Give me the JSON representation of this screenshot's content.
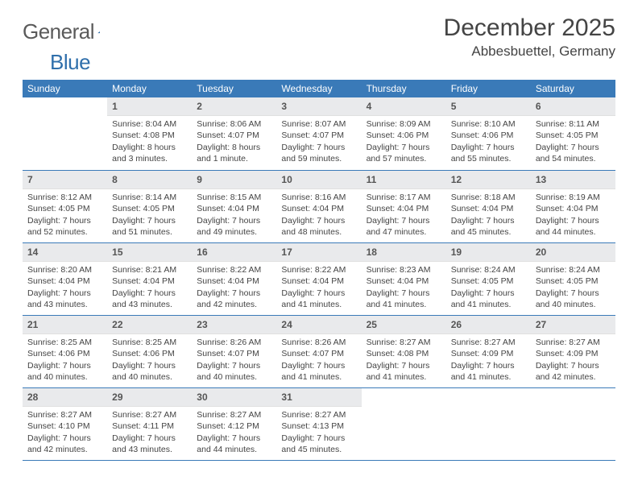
{
  "logo": {
    "word1": "General",
    "word2": "Blue"
  },
  "header": {
    "month_title": "December 2025",
    "location": "Abbesbuettel, Germany"
  },
  "colors": {
    "header_bg": "#3a7ab8",
    "header_fg": "#ffffff",
    "daynum_bg": "#e9eaec",
    "rule": "#3a7ab8",
    "text": "#444444",
    "logo_gray": "#5a5a5a",
    "logo_blue": "#2f6fab"
  },
  "day_headers": [
    "Sunday",
    "Monday",
    "Tuesday",
    "Wednesday",
    "Thursday",
    "Friday",
    "Saturday"
  ],
  "weeks": [
    [
      {
        "num": "",
        "sunrise": "",
        "sunset": "",
        "daylight": ""
      },
      {
        "num": "1",
        "sunrise": "Sunrise: 8:04 AM",
        "sunset": "Sunset: 4:08 PM",
        "daylight": "Daylight: 8 hours and 3 minutes."
      },
      {
        "num": "2",
        "sunrise": "Sunrise: 8:06 AM",
        "sunset": "Sunset: 4:07 PM",
        "daylight": "Daylight: 8 hours and 1 minute."
      },
      {
        "num": "3",
        "sunrise": "Sunrise: 8:07 AM",
        "sunset": "Sunset: 4:07 PM",
        "daylight": "Daylight: 7 hours and 59 minutes."
      },
      {
        "num": "4",
        "sunrise": "Sunrise: 8:09 AM",
        "sunset": "Sunset: 4:06 PM",
        "daylight": "Daylight: 7 hours and 57 minutes."
      },
      {
        "num": "5",
        "sunrise": "Sunrise: 8:10 AM",
        "sunset": "Sunset: 4:06 PM",
        "daylight": "Daylight: 7 hours and 55 minutes."
      },
      {
        "num": "6",
        "sunrise": "Sunrise: 8:11 AM",
        "sunset": "Sunset: 4:05 PM",
        "daylight": "Daylight: 7 hours and 54 minutes."
      }
    ],
    [
      {
        "num": "7",
        "sunrise": "Sunrise: 8:12 AM",
        "sunset": "Sunset: 4:05 PM",
        "daylight": "Daylight: 7 hours and 52 minutes."
      },
      {
        "num": "8",
        "sunrise": "Sunrise: 8:14 AM",
        "sunset": "Sunset: 4:05 PM",
        "daylight": "Daylight: 7 hours and 51 minutes."
      },
      {
        "num": "9",
        "sunrise": "Sunrise: 8:15 AM",
        "sunset": "Sunset: 4:04 PM",
        "daylight": "Daylight: 7 hours and 49 minutes."
      },
      {
        "num": "10",
        "sunrise": "Sunrise: 8:16 AM",
        "sunset": "Sunset: 4:04 PM",
        "daylight": "Daylight: 7 hours and 48 minutes."
      },
      {
        "num": "11",
        "sunrise": "Sunrise: 8:17 AM",
        "sunset": "Sunset: 4:04 PM",
        "daylight": "Daylight: 7 hours and 47 minutes."
      },
      {
        "num": "12",
        "sunrise": "Sunrise: 8:18 AM",
        "sunset": "Sunset: 4:04 PM",
        "daylight": "Daylight: 7 hours and 45 minutes."
      },
      {
        "num": "13",
        "sunrise": "Sunrise: 8:19 AM",
        "sunset": "Sunset: 4:04 PM",
        "daylight": "Daylight: 7 hours and 44 minutes."
      }
    ],
    [
      {
        "num": "14",
        "sunrise": "Sunrise: 8:20 AM",
        "sunset": "Sunset: 4:04 PM",
        "daylight": "Daylight: 7 hours and 43 minutes."
      },
      {
        "num": "15",
        "sunrise": "Sunrise: 8:21 AM",
        "sunset": "Sunset: 4:04 PM",
        "daylight": "Daylight: 7 hours and 43 minutes."
      },
      {
        "num": "16",
        "sunrise": "Sunrise: 8:22 AM",
        "sunset": "Sunset: 4:04 PM",
        "daylight": "Daylight: 7 hours and 42 minutes."
      },
      {
        "num": "17",
        "sunrise": "Sunrise: 8:22 AM",
        "sunset": "Sunset: 4:04 PM",
        "daylight": "Daylight: 7 hours and 41 minutes."
      },
      {
        "num": "18",
        "sunrise": "Sunrise: 8:23 AM",
        "sunset": "Sunset: 4:04 PM",
        "daylight": "Daylight: 7 hours and 41 minutes."
      },
      {
        "num": "19",
        "sunrise": "Sunrise: 8:24 AM",
        "sunset": "Sunset: 4:05 PM",
        "daylight": "Daylight: 7 hours and 41 minutes."
      },
      {
        "num": "20",
        "sunrise": "Sunrise: 8:24 AM",
        "sunset": "Sunset: 4:05 PM",
        "daylight": "Daylight: 7 hours and 40 minutes."
      }
    ],
    [
      {
        "num": "21",
        "sunrise": "Sunrise: 8:25 AM",
        "sunset": "Sunset: 4:06 PM",
        "daylight": "Daylight: 7 hours and 40 minutes."
      },
      {
        "num": "22",
        "sunrise": "Sunrise: 8:25 AM",
        "sunset": "Sunset: 4:06 PM",
        "daylight": "Daylight: 7 hours and 40 minutes."
      },
      {
        "num": "23",
        "sunrise": "Sunrise: 8:26 AM",
        "sunset": "Sunset: 4:07 PM",
        "daylight": "Daylight: 7 hours and 40 minutes."
      },
      {
        "num": "24",
        "sunrise": "Sunrise: 8:26 AM",
        "sunset": "Sunset: 4:07 PM",
        "daylight": "Daylight: 7 hours and 41 minutes."
      },
      {
        "num": "25",
        "sunrise": "Sunrise: 8:27 AM",
        "sunset": "Sunset: 4:08 PM",
        "daylight": "Daylight: 7 hours and 41 minutes."
      },
      {
        "num": "26",
        "sunrise": "Sunrise: 8:27 AM",
        "sunset": "Sunset: 4:09 PM",
        "daylight": "Daylight: 7 hours and 41 minutes."
      },
      {
        "num": "27",
        "sunrise": "Sunrise: 8:27 AM",
        "sunset": "Sunset: 4:09 PM",
        "daylight": "Daylight: 7 hours and 42 minutes."
      }
    ],
    [
      {
        "num": "28",
        "sunrise": "Sunrise: 8:27 AM",
        "sunset": "Sunset: 4:10 PM",
        "daylight": "Daylight: 7 hours and 42 minutes."
      },
      {
        "num": "29",
        "sunrise": "Sunrise: 8:27 AM",
        "sunset": "Sunset: 4:11 PM",
        "daylight": "Daylight: 7 hours and 43 minutes."
      },
      {
        "num": "30",
        "sunrise": "Sunrise: 8:27 AM",
        "sunset": "Sunset: 4:12 PM",
        "daylight": "Daylight: 7 hours and 44 minutes."
      },
      {
        "num": "31",
        "sunrise": "Sunrise: 8:27 AM",
        "sunset": "Sunset: 4:13 PM",
        "daylight": "Daylight: 7 hours and 45 minutes."
      },
      {
        "num": "",
        "sunrise": "",
        "sunset": "",
        "daylight": ""
      },
      {
        "num": "",
        "sunrise": "",
        "sunset": "",
        "daylight": ""
      },
      {
        "num": "",
        "sunrise": "",
        "sunset": "",
        "daylight": ""
      }
    ]
  ]
}
